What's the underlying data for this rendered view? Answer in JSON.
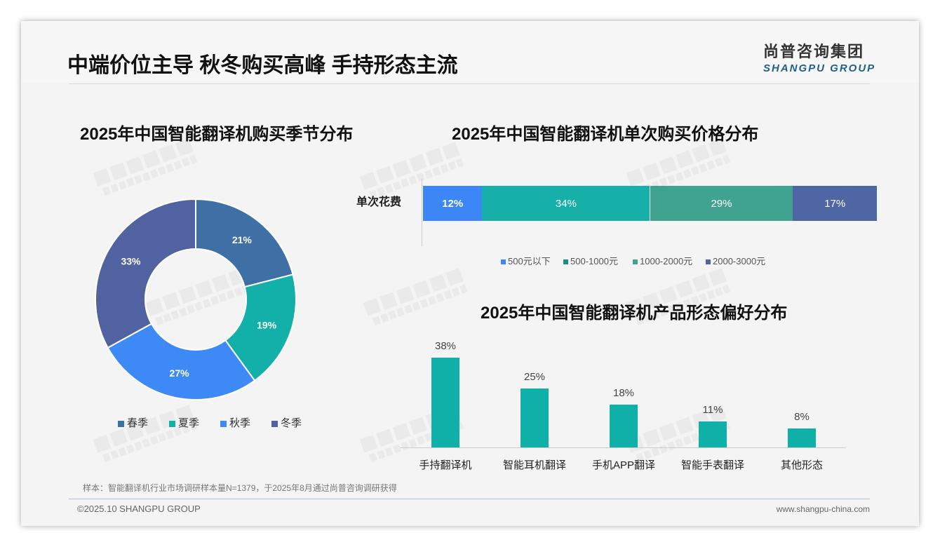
{
  "header": {
    "title": "中端价位主导 秋冬购买高峰 手持形态主流",
    "logo_cn": "尚普咨询集团",
    "logo_en": "SHANGPU GROUP"
  },
  "watermark": {
    "cn": "尚普咨询集团",
    "en": "SHANGPU GROUP"
  },
  "footer": {
    "note": "样本：智能翻译机行业市场调研样本量N=1379，于2025年8月通过尚普咨询调研获得",
    "copyright": "©2025.10 SHANGPU GROUP",
    "website": "www.shangpu-china.com"
  },
  "chart_data": [
    {
      "type": "pie",
      "title": "2025年中国智能翻译机购买季节分布",
      "categories": [
        "春季",
        "夏季",
        "秋季",
        "冬季"
      ],
      "values": [
        21,
        19,
        27,
        33
      ],
      "labels": [
        "21%",
        "19%",
        "27%",
        "33%"
      ],
      "colors": [
        "#3f70a5",
        "#12b0a8",
        "#3d8af7",
        "#5062a0"
      ],
      "legend": "bottom"
    },
    {
      "type": "bar",
      "stacked": true,
      "orientation": "horizontal",
      "title": "2025年中国智能翻译机单次购买价格分布",
      "categories": [
        "单次花费"
      ],
      "series": [
        {
          "name": "500元以下",
          "values": [
            12
          ],
          "label": "12%",
          "color": "#3d86f5"
        },
        {
          "name": "500-1000元",
          "values": [
            34
          ],
          "label": "34%",
          "color": "#17b0a9"
        },
        {
          "name": "1000-2000元",
          "values": [
            29
          ],
          "label": "29%",
          "color": "#40a38f"
        },
        {
          "name": "2000-3000元",
          "values": [
            17
          ],
          "label": "17%",
          "color": "#4f66a5"
        }
      ],
      "legend": "bottom"
    },
    {
      "type": "bar",
      "title": "2025年中国智能翻译机产品形态偏好分布",
      "categories": [
        "手持翻译机",
        "智能耳机翻译",
        "手机APP翻译",
        "智能手表翻译",
        "其他形态"
      ],
      "values": [
        38,
        25,
        18,
        11,
        8
      ],
      "labels": [
        "38%",
        "25%",
        "18%",
        "11%",
        "8%"
      ],
      "ylim": [
        0,
        40
      ],
      "color": "#0fb0a8"
    }
  ]
}
